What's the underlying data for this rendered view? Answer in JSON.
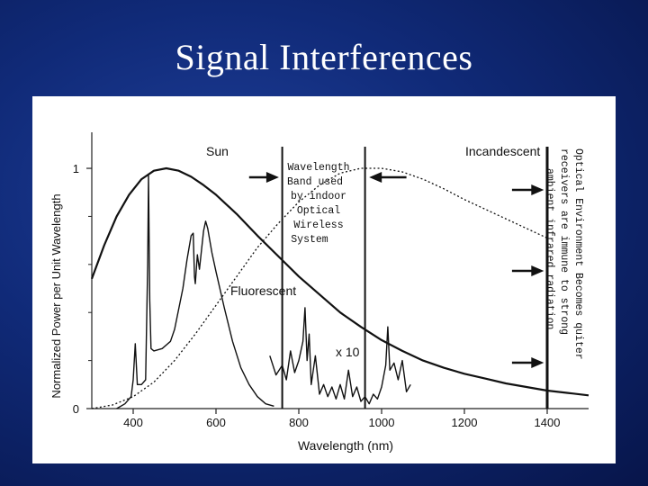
{
  "slide": {
    "title": "Signal Interferences"
  },
  "chart_data": {
    "type": "line",
    "title": "",
    "xlabel": "Wavelength (nm)",
    "ylabel": "Normalized Power per Unit Wavelength",
    "xlim": [
      300,
      1500
    ],
    "ylim": [
      0,
      1.15
    ],
    "x_ticks": [
      400,
      600,
      800,
      1000,
      1200,
      1400
    ],
    "y_tick_labels": [
      {
        "value": 0,
        "label": "0"
      },
      {
        "value": 1,
        "label": "1"
      }
    ],
    "y_minor_ticks": [
      0.2,
      0.4,
      0.6,
      0.8
    ],
    "grid": false,
    "series": [
      {
        "name": "Sun",
        "style": "solid",
        "x": [
          300,
          330,
          360,
          390,
          420,
          450,
          480,
          510,
          540,
          570,
          600,
          650,
          700,
          750,
          800,
          850,
          900,
          950,
          1000,
          1050,
          1100,
          1150,
          1200,
          1250,
          1300,
          1350,
          1400,
          1450,
          1500
        ],
        "y": [
          0.54,
          0.68,
          0.8,
          0.89,
          0.955,
          0.99,
          1.0,
          0.99,
          0.965,
          0.93,
          0.89,
          0.81,
          0.72,
          0.635,
          0.55,
          0.475,
          0.4,
          0.34,
          0.285,
          0.24,
          0.2,
          0.17,
          0.145,
          0.125,
          0.105,
          0.09,
          0.075,
          0.065,
          0.055
        ]
      },
      {
        "name": "Incandescent",
        "style": "dotted",
        "x": [
          300,
          350,
          400,
          450,
          500,
          550,
          600,
          650,
          700,
          750,
          800,
          850,
          900,
          950,
          1000,
          1050,
          1100,
          1150,
          1200,
          1250,
          1300,
          1350,
          1400
        ],
        "y": [
          0.0,
          0.015,
          0.05,
          0.11,
          0.2,
          0.31,
          0.43,
          0.55,
          0.67,
          0.77,
          0.86,
          0.93,
          0.98,
          1.0,
          1.0,
          0.985,
          0.955,
          0.915,
          0.87,
          0.83,
          0.79,
          0.75,
          0.71
        ]
      },
      {
        "name": "Fluorescent",
        "style": "solid",
        "x": [
          360,
          380,
          395,
          400,
          405,
          410,
          420,
          430,
          435,
          437,
          440,
          443,
          450,
          470,
          490,
          500,
          520,
          530,
          540,
          545,
          548,
          550,
          555,
          560,
          565,
          570,
          575,
          580,
          585,
          590,
          600,
          620,
          640,
          660,
          680,
          700,
          720,
          740
        ],
        "y": [
          0.0,
          0.02,
          0.05,
          0.12,
          0.27,
          0.1,
          0.1,
          0.12,
          0.6,
          0.97,
          0.45,
          0.25,
          0.24,
          0.25,
          0.28,
          0.33,
          0.5,
          0.62,
          0.72,
          0.73,
          0.55,
          0.52,
          0.64,
          0.58,
          0.66,
          0.74,
          0.78,
          0.75,
          0.7,
          0.65,
          0.57,
          0.42,
          0.28,
          0.17,
          0.1,
          0.05,
          0.02,
          0.01
        ]
      },
      {
        "name": "x 10",
        "style": "solid",
        "x": [
          730,
          745,
          760,
          770,
          780,
          790,
          800,
          810,
          815,
          820,
          825,
          830,
          840,
          850,
          860,
          870,
          880,
          890,
          900,
          910,
          920,
          930,
          940,
          950,
          960,
          970,
          980,
          990,
          1000,
          1010,
          1015,
          1020,
          1030,
          1040,
          1050,
          1060,
          1070
        ],
        "y": [
          0.22,
          0.14,
          0.18,
          0.12,
          0.24,
          0.15,
          0.2,
          0.28,
          0.42,
          0.2,
          0.31,
          0.1,
          0.22,
          0.06,
          0.1,
          0.05,
          0.09,
          0.04,
          0.1,
          0.04,
          0.16,
          0.05,
          0.09,
          0.03,
          0.05,
          0.02,
          0.06,
          0.04,
          0.09,
          0.18,
          0.34,
          0.16,
          0.19,
          0.12,
          0.2,
          0.07,
          0.1
        ]
      }
    ],
    "vertical_lines": [
      760,
      960,
      1400
    ],
    "annotations": {
      "band_text": [
        "Wavelength",
        "Band used",
        "by indoor",
        "Optical",
        "Wireless",
        "System"
      ],
      "rotated_text": [
        "Optical Environment Becomes quiter",
        "receivers are immune to strong",
        "ambient infrared radiation"
      ],
      "series_labels": {
        "sun": "Sun",
        "incandescent": "Incandescent",
        "fluorescent": "Fluorescent",
        "x10": "x 10"
      }
    }
  }
}
